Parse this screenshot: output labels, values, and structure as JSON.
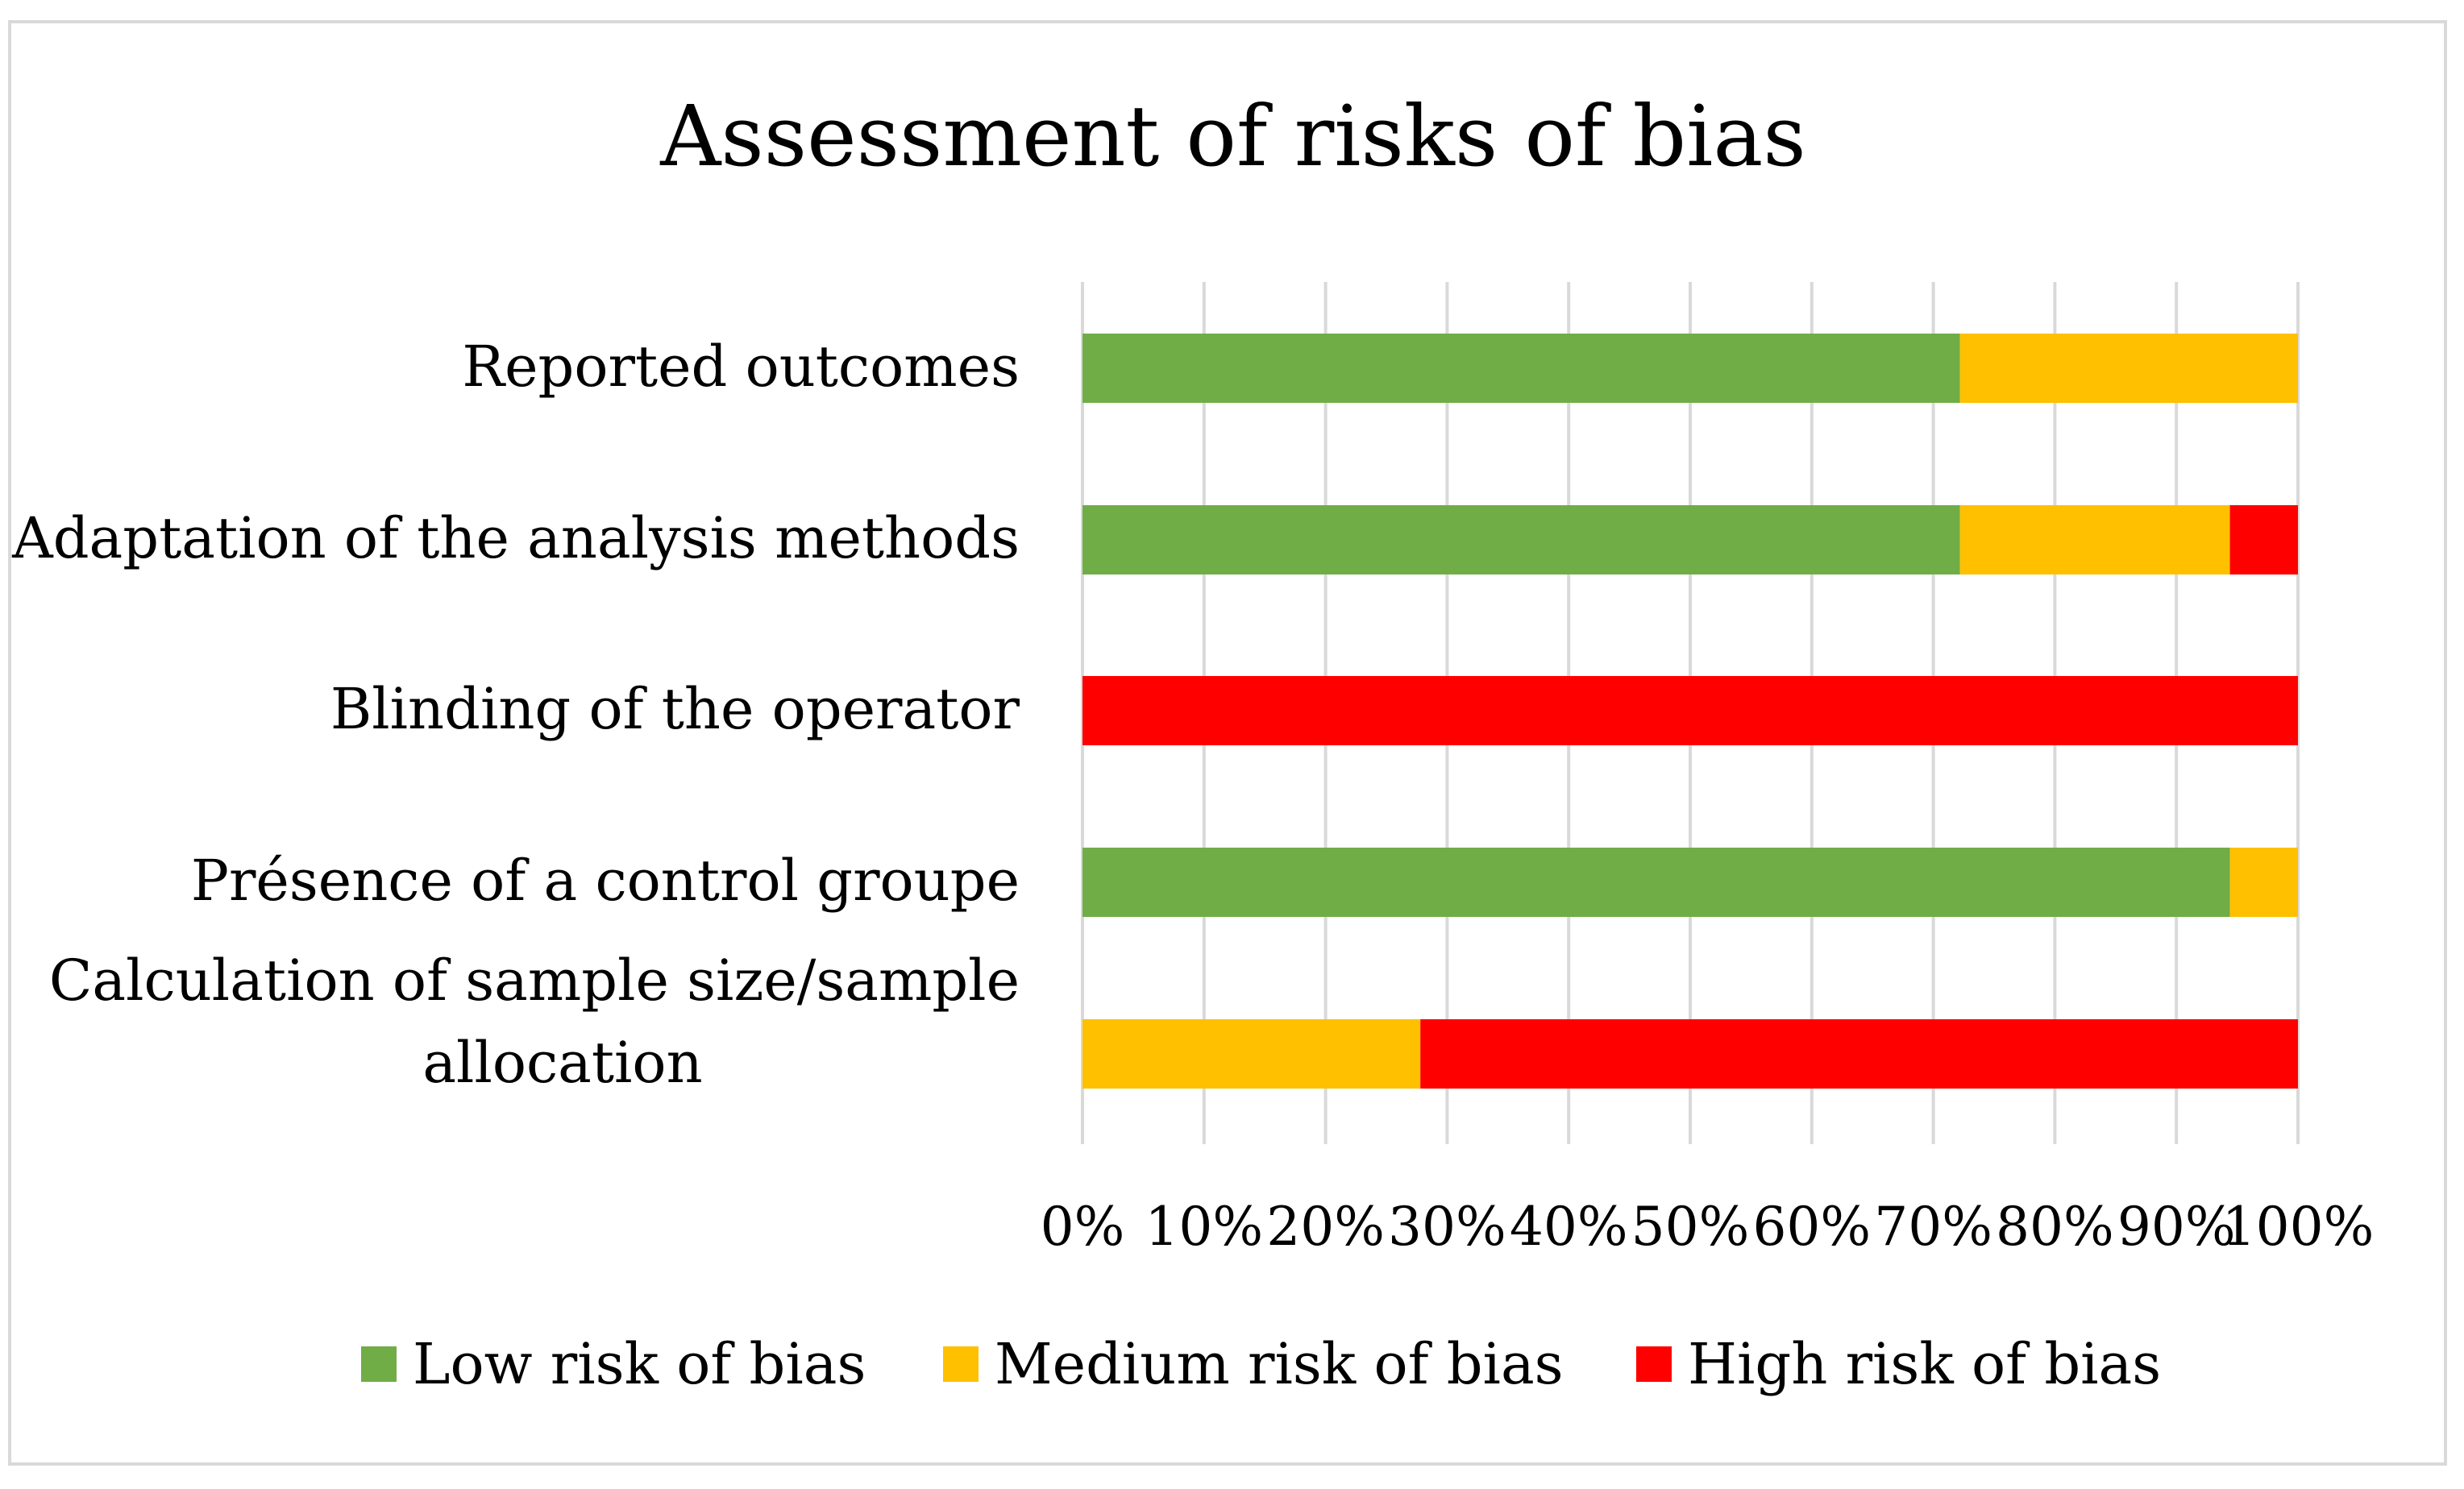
{
  "chart_data": {
    "type": "bar",
    "orientation": "horizontal",
    "stacked": true,
    "title": "Assessment of risks of bias",
    "xlabel": "",
    "ylabel": "",
    "xlim": [
      0,
      100
    ],
    "x_ticks": [
      "0%",
      "10%",
      "20%",
      "30%",
      "40%",
      "50%",
      "60%",
      "70%",
      "80%",
      "90%",
      "100%"
    ],
    "categories": [
      "Reported outcomes",
      "Adaptation of the analysis methods",
      "Blinding of the operator",
      "Présence of a control groupe",
      "Calculation of sample size/sample allocation"
    ],
    "category_lines": [
      [
        "Reported outcomes"
      ],
      [
        "Adaptation of the analysis methods"
      ],
      [
        "Blinding of the operator"
      ],
      [
        "Présence of a control groupe"
      ],
      [
        "Calculation of sample size/sample",
        "allocation"
      ]
    ],
    "series": [
      {
        "name": "Low risk of bias",
        "color": "#70AD47",
        "values": [
          72.2,
          72.2,
          0,
          94.4,
          0
        ]
      },
      {
        "name": "Medium risk of bias",
        "color": "#FFC000",
        "values": [
          27.8,
          22.2,
          0,
          5.6,
          27.8
        ]
      },
      {
        "name": "High risk of bias",
        "color": "#FF0000",
        "values": [
          0,
          5.6,
          100,
          0,
          72.2
        ]
      }
    ],
    "grid": true,
    "legend_position": "bottom"
  }
}
